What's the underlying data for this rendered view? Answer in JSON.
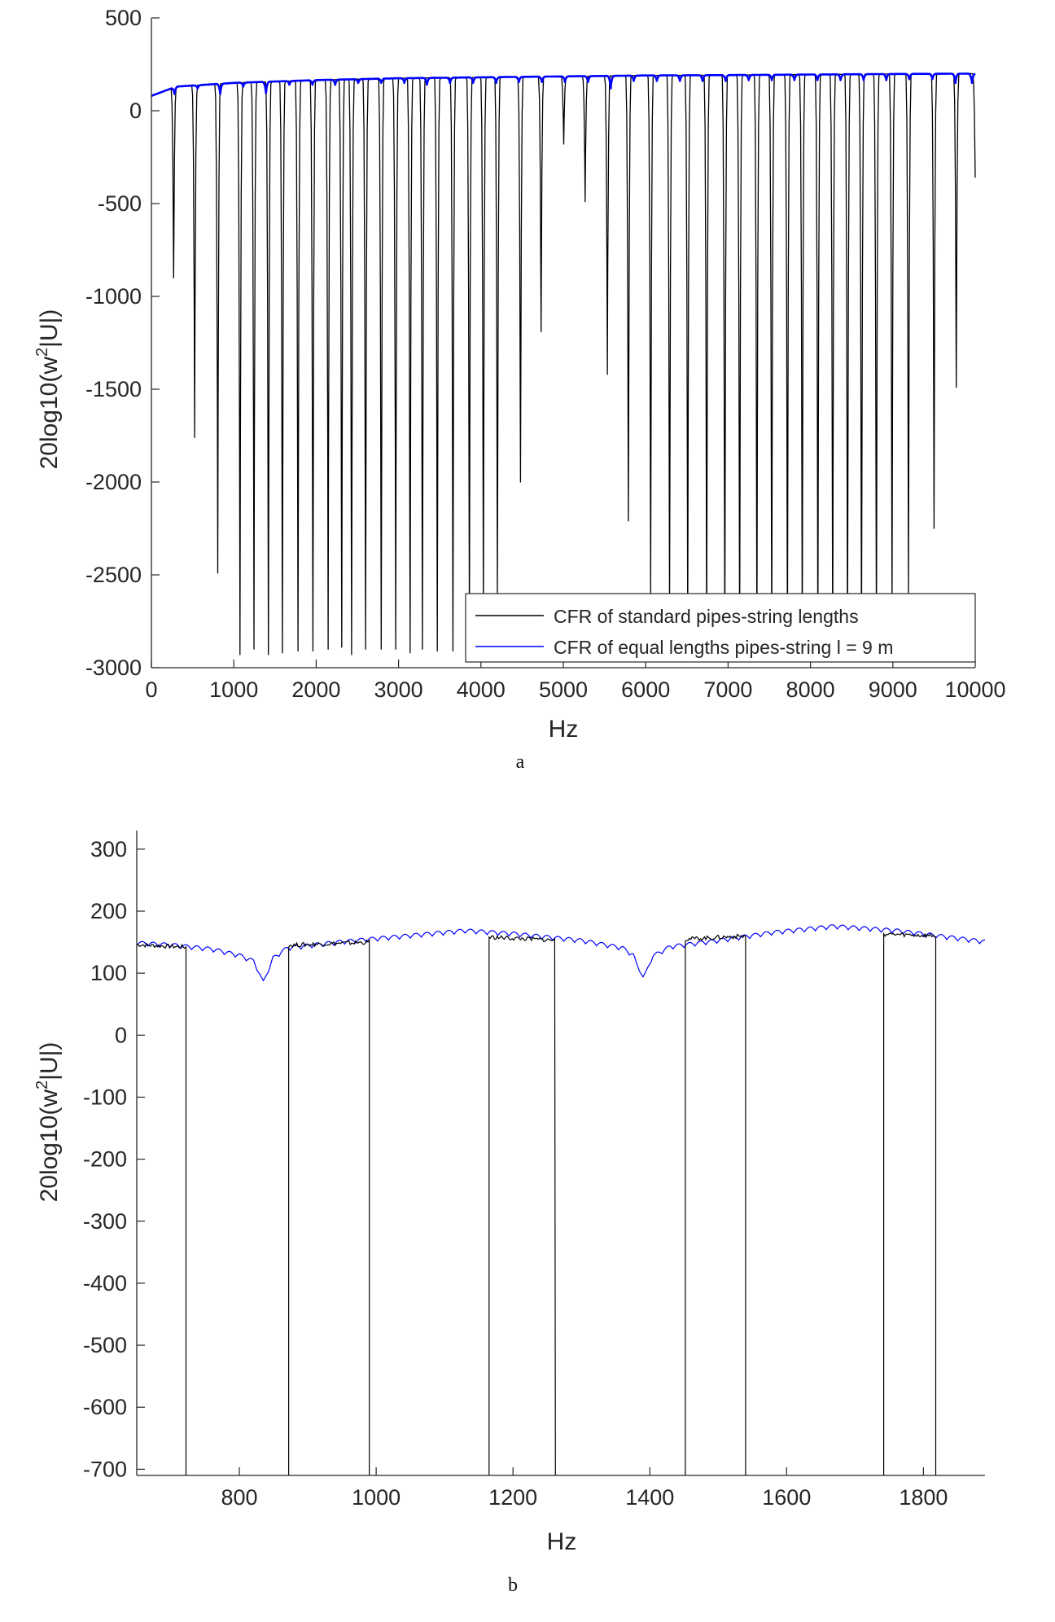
{
  "colors": {
    "standard": "#000000",
    "equal": "#0000ff",
    "axis": "#262626"
  },
  "chart_data": [
    {
      "type": "line",
      "caption": "a",
      "xlabel": "Hz",
      "ylabel_parts": [
        "20log10(w",
        "2",
        "|U|)"
      ],
      "xlim": [
        0,
        10000
      ],
      "ylim": [
        -3000,
        500
      ],
      "xticks": [
        0,
        1000,
        2000,
        3000,
        4000,
        5000,
        6000,
        7000,
        8000,
        9000,
        10000
      ],
      "yticks": [
        500,
        0,
        -500,
        -1000,
        -1500,
        -2000,
        -2500,
        -3000
      ],
      "legend": {
        "position": "bottom-right",
        "entries": [
          "CFR of standard pipes-string lengths",
          "CFR of equal lengths pipes-string l = 9 m"
        ]
      },
      "series": [
        {
          "name": "CFR of standard pipes-string lengths",
          "color": "#000000",
          "baseline": {
            "x": [
              0,
              300,
              1000,
              2000,
              3000,
              4000,
              5000,
              6000,
              7000,
              8000,
              9000,
              10000
            ],
            "y": [
              80,
              130,
              150,
              165,
              175,
              180,
              185,
              190,
              192,
              195,
              198,
              200
            ]
          },
          "dips": [
            {
              "x": 270,
              "min": -900
            },
            {
              "x": 525,
              "min": -1760
            },
            {
              "x": 805,
              "min": -2490
            },
            {
              "x": 1075,
              "min": -2930
            },
            {
              "x": 1245,
              "min": -2900
            },
            {
              "x": 1420,
              "min": -2930
            },
            {
              "x": 1590,
              "min": -2920
            },
            {
              "x": 1780,
              "min": -2910
            },
            {
              "x": 1960,
              "min": -2910
            },
            {
              "x": 2145,
              "min": -2900
            },
            {
              "x": 2310,
              "min": -2890
            },
            {
              "x": 2430,
              "min": -2930
            },
            {
              "x": 2600,
              "min": -2900
            },
            {
              "x": 2790,
              "min": -2900
            },
            {
              "x": 2965,
              "min": -2900
            },
            {
              "x": 3140,
              "min": -2920
            },
            {
              "x": 3290,
              "min": -2900
            },
            {
              "x": 3470,
              "min": -2910
            },
            {
              "x": 3660,
              "min": -2910
            },
            {
              "x": 3860,
              "min": -2800
            },
            {
              "x": 4030,
              "min": -2700
            },
            {
              "x": 4200,
              "min": -2600
            },
            {
              "x": 4480,
              "min": -2000
            },
            {
              "x": 4730,
              "min": -1190
            },
            {
              "x": 5005,
              "min": -180
            },
            {
              "x": 5265,
              "min": -490
            },
            {
              "x": 5535,
              "min": -1420
            },
            {
              "x": 5790,
              "min": -2210
            },
            {
              "x": 6060,
              "min": -2600
            },
            {
              "x": 6290,
              "min": -2700
            },
            {
              "x": 6510,
              "min": -2800
            },
            {
              "x": 6740,
              "min": -2900
            },
            {
              "x": 6960,
              "min": -2900
            },
            {
              "x": 7140,
              "min": -2930
            },
            {
              "x": 7350,
              "min": -2900
            },
            {
              "x": 7530,
              "min": -2900
            },
            {
              "x": 7720,
              "min": -2920
            },
            {
              "x": 7900,
              "min": -2900
            },
            {
              "x": 8090,
              "min": -2900
            },
            {
              "x": 8270,
              "min": -2930
            },
            {
              "x": 8450,
              "min": -2920
            },
            {
              "x": 8620,
              "min": -2900
            },
            {
              "x": 8800,
              "min": -2850
            },
            {
              "x": 8990,
              "min": -2700
            },
            {
              "x": 9190,
              "min": -2600
            },
            {
              "x": 9500,
              "min": -2250
            },
            {
              "x": 9770,
              "min": -1490
            },
            {
              "x": 10000,
              "min": -360
            }
          ]
        },
        {
          "name": "CFR of equal lengths pipes-string l = 9 m",
          "color": "#0000ff",
          "baseline": {
            "x": [
              0,
              300,
              1000,
              2000,
              3000,
              4000,
              5000,
              6000,
              7000,
              8000,
              9000,
              10000
            ],
            "y": [
              80,
              130,
              150,
              165,
              175,
              180,
              185,
              190,
              192,
              195,
              198,
              200
            ]
          },
          "dips": [
            {
              "x": 280,
              "min": 90
            },
            {
              "x": 560,
              "min": 120
            },
            {
              "x": 835,
              "min": 90
            },
            {
              "x": 1115,
              "min": 130
            },
            {
              "x": 1390,
              "min": 95
            },
            {
              "x": 1675,
              "min": 140
            },
            {
              "x": 1955,
              "min": 140
            },
            {
              "x": 2230,
              "min": 140
            },
            {
              "x": 2510,
              "min": 150
            },
            {
              "x": 2790,
              "min": 150
            },
            {
              "x": 3070,
              "min": 150
            },
            {
              "x": 3345,
              "min": 140
            },
            {
              "x": 3625,
              "min": 150
            },
            {
              "x": 3905,
              "min": 150
            },
            {
              "x": 4185,
              "min": 150
            },
            {
              "x": 4460,
              "min": 155
            },
            {
              "x": 4740,
              "min": 155
            },
            {
              "x": 5020,
              "min": 155
            },
            {
              "x": 5300,
              "min": 155
            },
            {
              "x": 5575,
              "min": 120
            },
            {
              "x": 5855,
              "min": 160
            },
            {
              "x": 6135,
              "min": 160
            },
            {
              "x": 6415,
              "min": 160
            },
            {
              "x": 6690,
              "min": 160
            },
            {
              "x": 6970,
              "min": 160
            },
            {
              "x": 7250,
              "min": 165
            },
            {
              "x": 7530,
              "min": 165
            },
            {
              "x": 7805,
              "min": 165
            },
            {
              "x": 8085,
              "min": 165
            },
            {
              "x": 8365,
              "min": 165
            },
            {
              "x": 8645,
              "min": 165
            },
            {
              "x": 8920,
              "min": 165
            },
            {
              "x": 9200,
              "min": 170
            },
            {
              "x": 9480,
              "min": 170
            },
            {
              "x": 9760,
              "min": 150
            },
            {
              "x": 9960,
              "min": 150
            }
          ]
        }
      ]
    },
    {
      "type": "line",
      "caption": "b",
      "xlabel": "Hz",
      "ylabel_parts": [
        "20log10(w",
        "2",
        "|U|)"
      ],
      "xlim": [
        650,
        1890
      ],
      "ylim": [
        -710,
        330
      ],
      "xticks": [
        800,
        1000,
        1200,
        1400,
        1600,
        1800
      ],
      "yticks": [
        300,
        200,
        100,
        0,
        -100,
        -200,
        -300,
        -400,
        -500,
        -600,
        -700
      ],
      "series": [
        {
          "name": "CFR of standard pipes-string lengths",
          "color": "#000000",
          "segments": [
            {
              "x": [
                650,
                722
              ],
              "y": [
                146,
                142
              ]
            },
            {
              "x": [
                872,
                990
              ],
              "y": [
                145,
                150
              ]
            },
            {
              "x": [
                1165,
                1262
              ],
              "y": [
                158,
                153
              ]
            },
            {
              "x": [
                1452,
                1540
              ],
              "y": [
                155,
                160
              ]
            },
            {
              "x": [
                1742,
                1818
              ],
              "y": [
                163,
                160
              ]
            }
          ],
          "drops_to": -710
        },
        {
          "name": "CFR of equal lengths pipes-string l = 9 m",
          "color": "#0000ff",
          "baseline": {
            "x": [
              650,
              700,
              760,
              800,
              835,
              870,
              950,
              1050,
              1130,
              1200,
              1300,
              1360,
              1390,
              1430,
              1500,
              1580,
              1670,
              1760,
              1840,
              1890
            ],
            "y": [
              148,
              145,
              138,
              128,
              112,
              140,
              150,
              160,
              168,
              163,
              152,
              140,
              118,
              142,
              152,
              165,
              175,
              168,
              157,
              150
            ]
          },
          "spikes": [
            {
              "x": 835,
              "min": 88
            },
            {
              "x": 1390,
              "min": 94
            }
          ],
          "ripple_period_hz": 16,
          "ripple_amplitude": 7
        }
      ]
    }
  ]
}
